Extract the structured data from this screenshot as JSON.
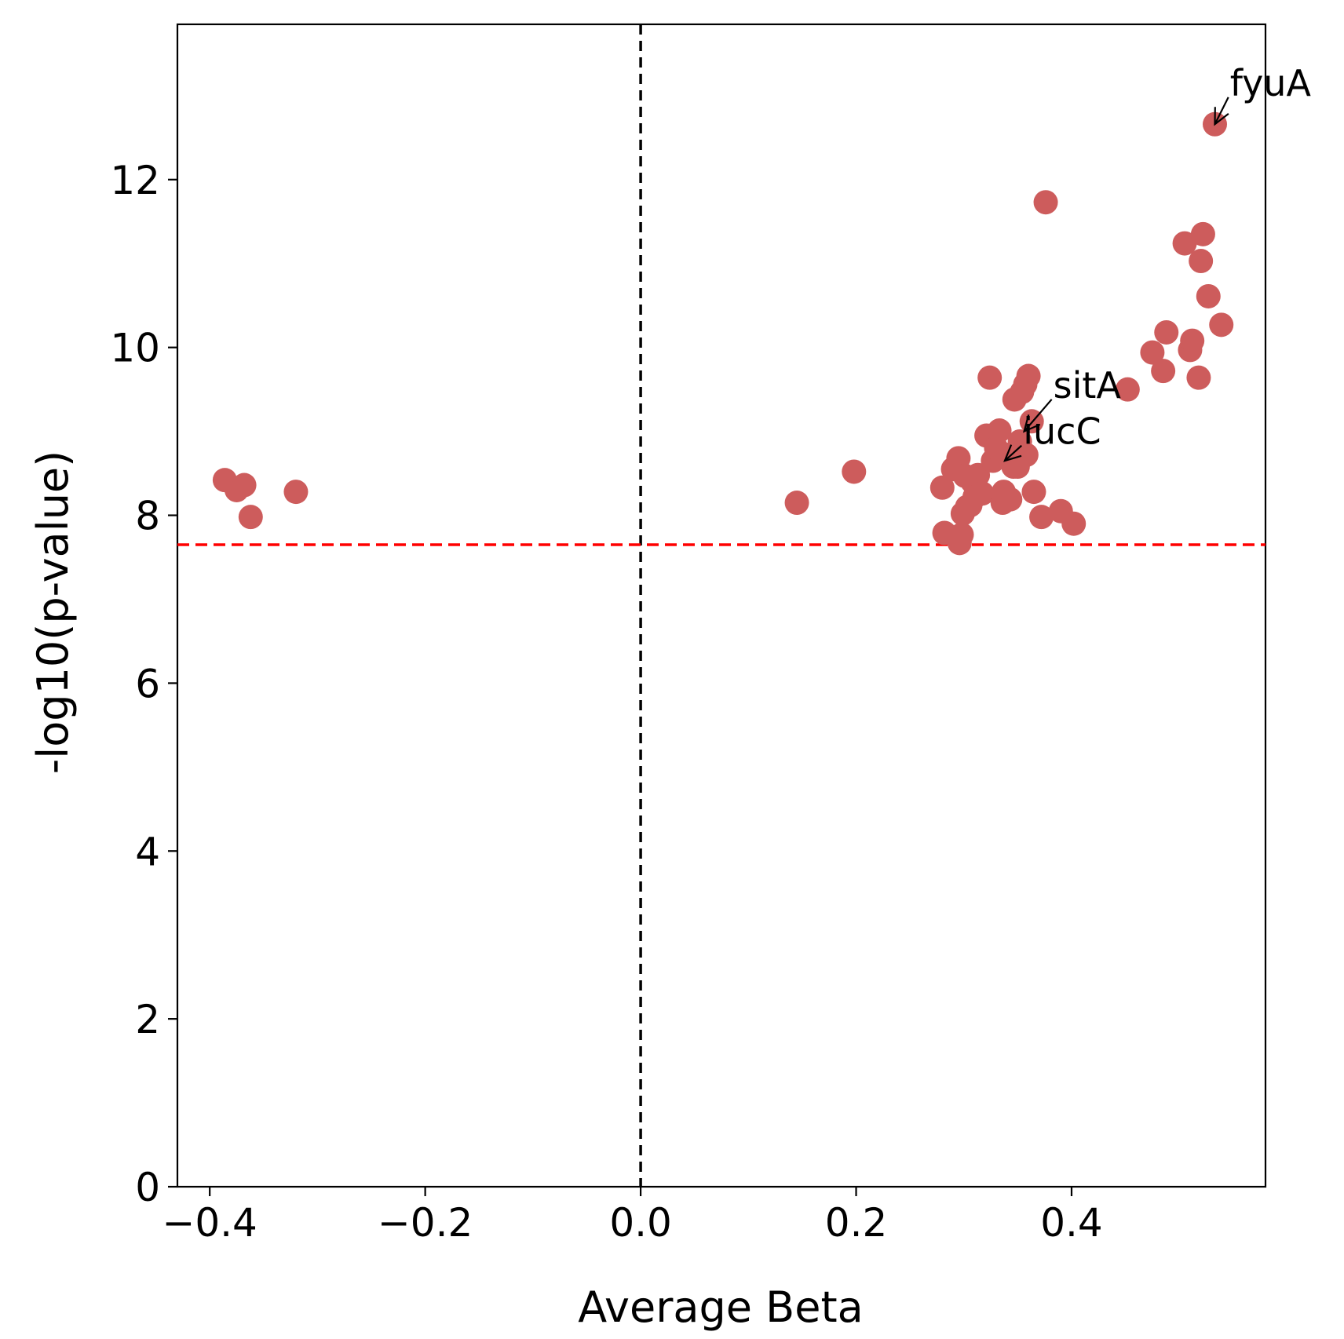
{
  "chart_data": {
    "type": "scatter",
    "xlabel": "Average Beta",
    "ylabel": "-log10(p-value)",
    "xlim": [
      -0.43,
      0.58
    ],
    "ylim": [
      0,
      13.85
    ],
    "x_ticks": [
      -0.4,
      -0.2,
      0.0,
      0.2,
      0.4
    ],
    "x_tick_labels": [
      "−0.4",
      "−0.2",
      "0.0",
      "0.2",
      "0.4"
    ],
    "y_ticks": [
      0,
      2,
      4,
      6,
      8,
      10,
      12
    ],
    "y_tick_labels": [
      "0",
      "2",
      "4",
      "6",
      "8",
      "10",
      "12"
    ],
    "grid": false,
    "point_color": "#cd5c5c",
    "threshold_line": {
      "y": 7.65,
      "color": "#ff0000",
      "style": "dashed"
    },
    "zero_line": {
      "x": 0.0,
      "color": "#000000",
      "style": "dashed"
    },
    "series": [
      {
        "points": [
          {
            "x": -0.386,
            "y": 8.42
          },
          {
            "x": -0.375,
            "y": 8.3
          },
          {
            "x": -0.368,
            "y": 8.36
          },
          {
            "x": -0.362,
            "y": 7.98
          },
          {
            "x": -0.32,
            "y": 8.28
          },
          {
            "x": 0.145,
            "y": 8.15
          },
          {
            "x": 0.198,
            "y": 8.52
          },
          {
            "x": 0.28,
            "y": 8.33
          },
          {
            "x": 0.282,
            "y": 7.79
          },
          {
            "x": 0.29,
            "y": 8.55
          },
          {
            "x": 0.295,
            "y": 8.68
          },
          {
            "x": 0.296,
            "y": 7.67
          },
          {
            "x": 0.298,
            "y": 7.77
          },
          {
            "x": 0.299,
            "y": 8.02
          },
          {
            "x": 0.301,
            "y": 8.47
          },
          {
            "x": 0.303,
            "y": 8.1
          },
          {
            "x": 0.306,
            "y": 8.12
          },
          {
            "x": 0.308,
            "y": 8.4
          },
          {
            "x": 0.31,
            "y": 8.22
          },
          {
            "x": 0.313,
            "y": 8.48
          },
          {
            "x": 0.317,
            "y": 8.26
          },
          {
            "x": 0.321,
            "y": 8.95
          },
          {
            "x": 0.324,
            "y": 9.64
          },
          {
            "x": 0.327,
            "y": 8.65
          },
          {
            "x": 0.33,
            "y": 8.8
          },
          {
            "x": 0.333,
            "y": 9.01
          },
          {
            "x": 0.336,
            "y": 8.15
          },
          {
            "x": 0.337,
            "y": 8.28
          },
          {
            "x": 0.34,
            "y": 8.72
          },
          {
            "x": 0.343,
            "y": 8.19
          },
          {
            "x": 0.346,
            "y": 8.58
          },
          {
            "x": 0.347,
            "y": 9.38
          },
          {
            "x": 0.35,
            "y": 8.58
          },
          {
            "x": 0.352,
            "y": 8.88
          },
          {
            "x": 0.354,
            "y": 9.47
          },
          {
            "x": 0.357,
            "y": 9.56
          },
          {
            "x": 0.358,
            "y": 8.72
          },
          {
            "x": 0.36,
            "y": 9.66
          },
          {
            "x": 0.363,
            "y": 9.12
          },
          {
            "x": 0.365,
            "y": 8.28
          },
          {
            "x": 0.372,
            "y": 7.98
          },
          {
            "x": 0.376,
            "y": 11.73
          },
          {
            "x": 0.39,
            "y": 8.05
          },
          {
            "x": 0.402,
            "y": 7.9
          },
          {
            "x": 0.452,
            "y": 9.5
          },
          {
            "x": 0.475,
            "y": 9.94
          },
          {
            "x": 0.485,
            "y": 9.72
          },
          {
            "x": 0.488,
            "y": 10.18
          },
          {
            "x": 0.505,
            "y": 11.24
          },
          {
            "x": 0.51,
            "y": 9.97
          },
          {
            "x": 0.512,
            "y": 10.08
          },
          {
            "x": 0.518,
            "y": 9.64
          },
          {
            "x": 0.52,
            "y": 11.03
          },
          {
            "x": 0.522,
            "y": 11.35
          },
          {
            "x": 0.527,
            "y": 10.61
          },
          {
            "x": 0.533,
            "y": 12.66
          },
          {
            "x": 0.539,
            "y": 10.27
          }
        ]
      }
    ],
    "annotations": [
      {
        "text": "fyuA",
        "x": 0.533,
        "y": 12.66,
        "text_x": 0.547,
        "text_y": 13.0
      },
      {
        "text": "sitA",
        "x": 0.356,
        "y": 9.0,
        "text_x": 0.383,
        "text_y": 9.4
      },
      {
        "text": "iucC",
        "x": 0.338,
        "y": 8.65,
        "text_x": 0.355,
        "text_y": 8.85
      }
    ]
  }
}
